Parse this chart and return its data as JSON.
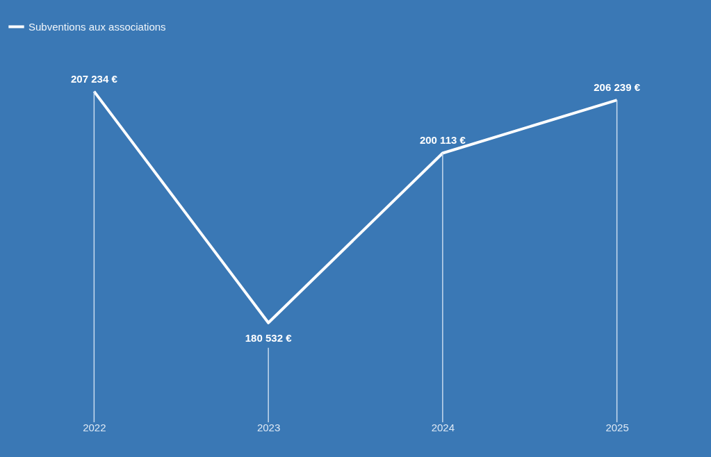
{
  "chart_data": {
    "type": "line",
    "categories": [
      "2022",
      "2023",
      "2024",
      "2025"
    ],
    "series": [
      {
        "name": "Subventions aux associations",
        "color": "#ffffff",
        "values": [
          207234,
          180532,
          200113,
          206239
        ],
        "value_labels": [
          "207 234 €",
          "180 532 €",
          "200 113 €",
          "206 239 €"
        ]
      }
    ],
    "legend": "top",
    "grid": "x",
    "marker": "none",
    "line_style": "solid"
  }
}
